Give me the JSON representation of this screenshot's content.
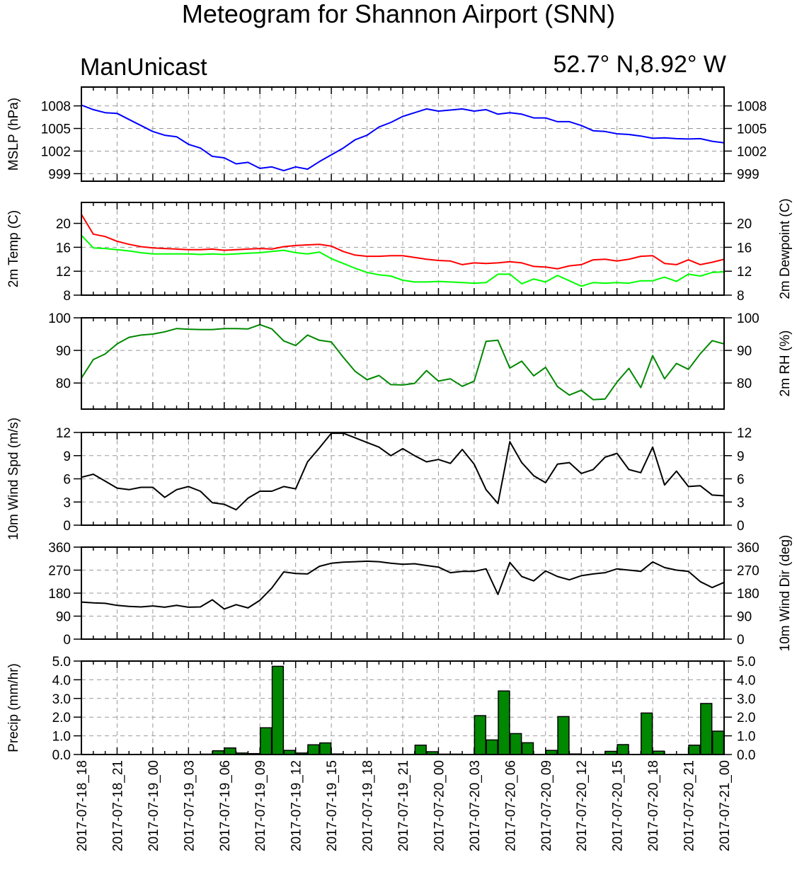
{
  "title": "Meteogram for Shannon Airport (SNN)",
  "model": "ManUnicast",
  "location": "52.7° N,8.92° W",
  "colors": {
    "mslp": "#0000ff",
    "temp": "#ff0000",
    "dewpoint": "#00ff00",
    "rh": "#008800",
    "wind": "#000000",
    "precip": "#008800",
    "grid": "#999999"
  },
  "chart_data": {
    "type": "line",
    "x_tick_labels": [
      "2017-07-18_18",
      "2017-07-18_21",
      "2017-07-19_00",
      "2017-07-19_03",
      "2017-07-19_06",
      "2017-07-19_09",
      "2017-07-19_12",
      "2017-07-19_15",
      "2017-07-19_18",
      "2017-07-19_21",
      "2017-07-20_00",
      "2017-07-20_03",
      "2017-07-20_06",
      "2017-07-20_09",
      "2017-07-20_12",
      "2017-07-20_15",
      "2017-07-20_18",
      "2017-07-20_21",
      "2017-07-21_00"
    ],
    "hours": [
      0,
      1,
      2,
      3,
      4,
      5,
      6,
      7,
      8,
      9,
      10,
      11,
      12,
      13,
      14,
      15,
      16,
      17,
      18,
      19,
      20,
      21,
      22,
      23,
      24,
      25,
      26,
      27,
      28,
      29,
      30,
      31,
      32,
      33,
      34,
      35,
      36,
      37,
      38,
      39,
      40,
      41,
      42,
      43,
      44,
      45,
      46,
      47,
      48,
      49,
      50,
      51,
      52,
      53,
      54
    ],
    "panels": [
      {
        "key": "mslp",
        "type": "line",
        "ylabel_left": "MSLP (hPa)",
        "ylabel_right": "",
        "ylim": [
          998,
          1010.5
        ],
        "yticks": [
          999,
          1002,
          1005,
          1008
        ],
        "series": [
          {
            "color_key": "mslp",
            "values": [
              1008.1,
              1007.5,
              1007.1,
              1007.0,
              1006.2,
              1005.4,
              1004.6,
              1004.1,
              1003.9,
              1002.9,
              1002.4,
              1001.3,
              1001.1,
              1000.3,
              1000.5,
              999.7,
              999.9,
              999.4,
              999.9,
              999.6,
              1000.6,
              1001.5,
              1002.4,
              1003.5,
              1004.1,
              1005.2,
              1005.8,
              1006.6,
              1007.1,
              1007.6,
              1007.3,
              1007.45,
              1007.6,
              1007.3,
              1007.5,
              1006.9,
              1007.1,
              1006.9,
              1006.4,
              1006.4,
              1005.9,
              1005.9,
              1005.4,
              1004.7,
              1004.6,
              1004.3,
              1004.2,
              1004.0,
              1003.7,
              1003.75,
              1003.65,
              1003.6,
              1003.65,
              1003.3,
              1003.1
            ]
          }
        ]
      },
      {
        "key": "temp",
        "type": "line",
        "ylabel_left": "2m Temp (C)",
        "ylabel_right": "2m Dewpoint (C)",
        "ylim": [
          8,
          23.5
        ],
        "yticks": [
          8,
          12,
          16,
          20
        ],
        "series": [
          {
            "color_key": "temp",
            "values": [
              21.5,
              18.2,
              17.8,
              17.0,
              16.5,
              16.1,
              15.9,
              15.8,
              15.7,
              15.6,
              15.6,
              15.7,
              15.5,
              15.6,
              15.7,
              15.8,
              15.7,
              16.1,
              16.3,
              16.4,
              16.5,
              16.2,
              15.3,
              14.7,
              14.5,
              14.5,
              14.6,
              14.6,
              14.3,
              14.0,
              13.8,
              13.7,
              13.1,
              13.4,
              13.3,
              13.4,
              13.6,
              13.4,
              12.8,
              12.7,
              12.4,
              12.9,
              13.1,
              13.9,
              14.0,
              13.7,
              14.0,
              14.5,
              14.6,
              13.3,
              13.1,
              13.9,
              13.1,
              13.5,
              14.0
            ]
          },
          {
            "color_key": "dewpoint",
            "values": [
              18.0,
              15.9,
              15.8,
              15.6,
              15.4,
              15.1,
              14.9,
              14.9,
              14.9,
              14.9,
              14.8,
              14.9,
              14.8,
              14.9,
              15.0,
              15.1,
              15.3,
              15.5,
              15.1,
              14.9,
              15.2,
              14.1,
              13.3,
              12.5,
              11.8,
              11.4,
              11.2,
              10.5,
              10.2,
              10.2,
              10.3,
              10.2,
              10.1,
              10.0,
              10.1,
              11.5,
              11.5,
              9.9,
              10.7,
              10.2,
              11.3,
              10.4,
              9.5,
              10.1,
              10.0,
              10.1,
              10.0,
              10.4,
              10.4,
              11.0,
              10.3,
              11.5,
              11.2,
              11.8,
              11.9
            ]
          }
        ]
      },
      {
        "key": "rh",
        "type": "line",
        "ylabel_left": "",
        "ylabel_right": "2m RH (%)",
        "ylim": [
          72,
          100
        ],
        "yticks": [
          80,
          90,
          100
        ],
        "series": [
          {
            "color_key": "rh",
            "values": [
              81.5,
              87.2,
              88.9,
              92.0,
              94.0,
              94.7,
              95.0,
              95.7,
              96.7,
              96.5,
              96.4,
              96.4,
              96.7,
              96.7,
              96.6,
              97.9,
              96.6,
              92.9,
              91.5,
              94.7,
              93.1,
              92.6,
              87.9,
              83.6,
              81.0,
              82.3,
              79.5,
              79.4,
              79.9,
              83.8,
              80.6,
              81.3,
              79.0,
              80.6,
              92.8,
              93.1,
              84.6,
              86.7,
              82.2,
              84.8,
              78.9,
              76.3,
              77.8,
              74.9,
              75.1,
              80.3,
              84.5,
              78.6,
              88.4,
              81.3,
              86.0,
              84.2,
              89.0,
              93.0,
              92.0
            ]
          }
        ]
      },
      {
        "key": "wspd",
        "type": "line",
        "ylabel_left": "10m Wind Spd (m/s)",
        "ylabel_right": "",
        "ylim": [
          0,
          12
        ],
        "yticks": [
          0,
          3,
          6,
          9,
          12
        ],
        "series": [
          {
            "color_key": "wind",
            "values": [
              6.2,
              6.6,
              5.7,
              4.8,
              4.6,
              4.9,
              4.9,
              3.6,
              4.6,
              5.0,
              4.4,
              2.9,
              2.7,
              2.0,
              3.5,
              4.4,
              4.4,
              5.0,
              4.7,
              8.2,
              10.0,
              11.9,
              11.9,
              11.3,
              10.7,
              10.1,
              9.0,
              9.9,
              9.0,
              8.2,
              8.5,
              8.0,
              9.8,
              7.9,
              4.6,
              2.8,
              10.8,
              8.1,
              6.4,
              5.5,
              7.9,
              8.1,
              6.7,
              7.2,
              8.8,
              9.3,
              7.2,
              6.8,
              10.1,
              5.2,
              7.0,
              5.0,
              5.1,
              3.9,
              3.8
            ]
          }
        ]
      },
      {
        "key": "wdir",
        "type": "line",
        "ylabel_left": "",
        "ylabel_right": "10m Wind Dir (deg)",
        "ylim": [
          0,
          360
        ],
        "yticks": [
          0,
          90,
          180,
          270,
          360
        ],
        "series": [
          {
            "color_key": "wind",
            "values": [
              145,
              142,
              140,
              132,
              128,
              126,
              130,
              125,
              132,
              125,
              126,
              154,
              118,
              135,
              122,
              152,
              200,
              263,
              257,
              255,
              285,
              297,
              301,
              303,
              305,
              303,
              297,
              293,
              295,
              288,
              282,
              260,
              265,
              265,
              275,
              175,
              300,
              245,
              228,
              267,
              245,
              232,
              248,
              255,
              260,
              275,
              270,
              265,
              302,
              280,
              270,
              265,
              225,
              202,
              222
            ]
          }
        ]
      },
      {
        "key": "precip",
        "type": "bar",
        "ylabel_left": "Precip (mm/hr)",
        "ylabel_right": "",
        "ylim": [
          0,
          5
        ],
        "yticks": [
          0,
          1,
          2,
          3,
          4,
          5
        ],
        "ytick_labels": [
          "0.0",
          "1.0",
          "2.0",
          "3.0",
          "4.0",
          "5.0"
        ],
        "series": [
          {
            "color_key": "precip",
            "values": [
              0,
              0,
              0,
              0,
              0,
              0,
              0,
              0,
              0,
              0,
              0.02,
              0.2,
              0.35,
              0.08,
              0.05,
              1.43,
              4.72,
              0.22,
              0.08,
              0.52,
              0.62,
              0.03,
              0,
              0,
              0,
              0,
              0,
              0,
              0.5,
              0.15,
              0.02,
              0.02,
              0,
              2.08,
              0.78,
              3.4,
              1.12,
              0.63,
              0,
              0.22,
              2.03,
              0.03,
              0,
              0,
              0.17,
              0.53,
              0,
              2.22,
              0.18,
              0,
              0,
              0.5,
              2.73,
              1.25
            ]
          }
        ]
      }
    ]
  }
}
